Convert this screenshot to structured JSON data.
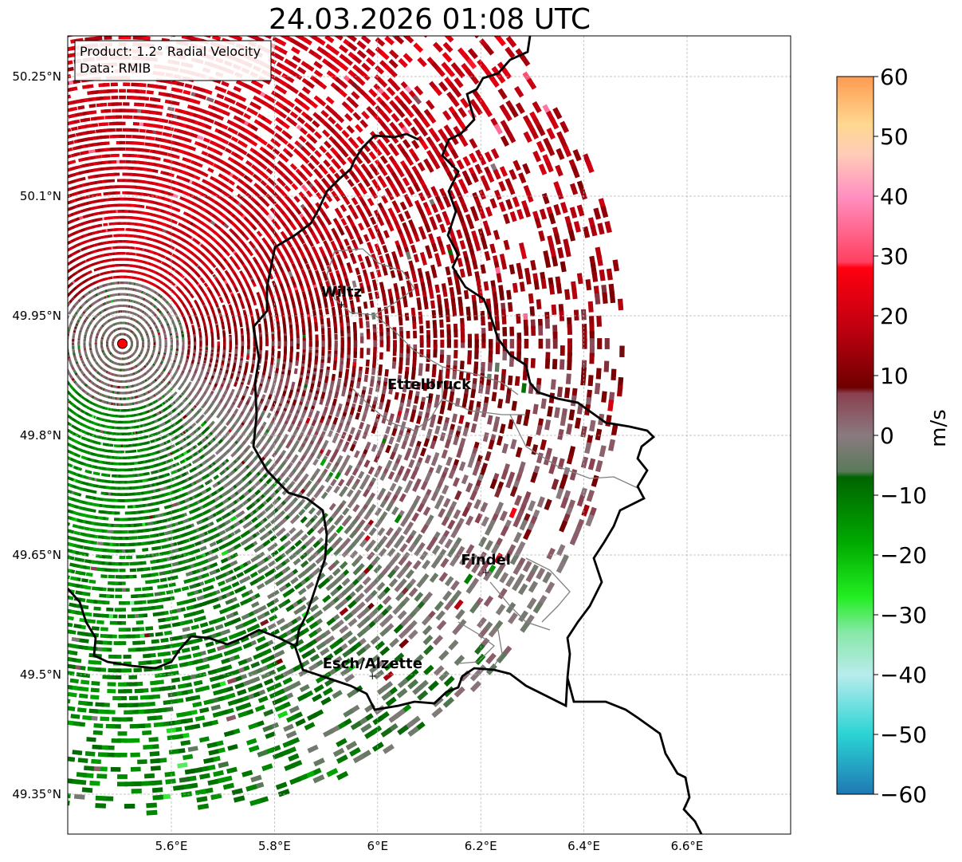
{
  "title": "24.03.2026 01:08 UTC",
  "info_box": {
    "product": "Product: 1.2° Radial Velocity",
    "source": "Data: RMIB"
  },
  "axes": {
    "lon_ticks": [
      "5.6°E",
      "5.8°E",
      "6°E",
      "6.2°E",
      "6.4°E",
      "6.6°E"
    ],
    "lat_ticks": [
      "50.25°N",
      "50.1°N",
      "49.95°N",
      "49.8°N",
      "49.65°N",
      "49.5°N",
      "49.35°N"
    ],
    "lon_range": [
      5.4,
      6.8
    ],
    "lat_range": [
      49.3,
      50.3
    ]
  },
  "radar_site": {
    "lon": 5.505,
    "lat": 49.915,
    "marker_color": "#ff0000"
  },
  "cities": [
    {
      "name": "Wiltz",
      "lon": 5.93,
      "lat": 49.966
    },
    {
      "name": "Ettelbruck",
      "lon": 6.1,
      "lat": 49.85
    },
    {
      "name": "Findel",
      "lon": 6.21,
      "lat": 49.63
    },
    {
      "name": "Esch/Alzette",
      "lon": 5.99,
      "lat": 49.5
    }
  ],
  "colorbar": {
    "label": "m/s",
    "vmin": -60,
    "vmax": 60,
    "ticks": [
      "60",
      "50",
      "40",
      "30",
      "20",
      "10",
      "0",
      "−10",
      "−20",
      "−30",
      "−40",
      "−50",
      "−60"
    ],
    "tick_values": [
      60,
      50,
      40,
      30,
      20,
      10,
      0,
      -10,
      -20,
      -30,
      -40,
      -50,
      -60
    ],
    "stops": [
      {
        "v": -60,
        "c": "#1f78b4"
      },
      {
        "v": -50,
        "c": "#2ad4d4"
      },
      {
        "v": -40,
        "c": "#b8ecec"
      },
      {
        "v": -33,
        "c": "#88e8a8"
      },
      {
        "v": -27,
        "c": "#22ee22"
      },
      {
        "v": -18,
        "c": "#00aa00"
      },
      {
        "v": -7,
        "c": "#006400"
      },
      {
        "v": -6,
        "c": "#5a7a5a"
      },
      {
        "v": 0,
        "c": "#8a7a80"
      },
      {
        "v": 7,
        "c": "#8a4050"
      },
      {
        "v": 8,
        "c": "#6e0000"
      },
      {
        "v": 18,
        "c": "#c00010"
      },
      {
        "v": 28,
        "c": "#ff0010"
      },
      {
        "v": 29,
        "c": "#ff4060"
      },
      {
        "v": 40,
        "c": "#ff90c0"
      },
      {
        "v": 47,
        "c": "#ffccb8"
      },
      {
        "v": 52,
        "c": "#ffd890"
      },
      {
        "v": 60,
        "c": "#ff9a50"
      }
    ]
  },
  "colors": {
    "border": "#000000",
    "admin_lines": "#808080",
    "grid": "#b0b0b0"
  }
}
